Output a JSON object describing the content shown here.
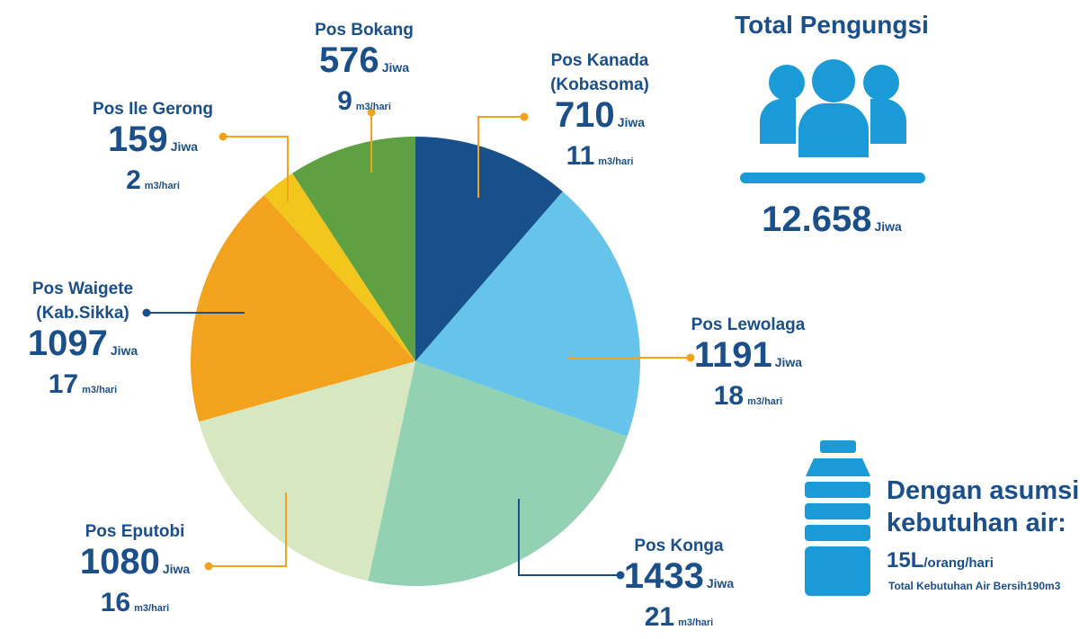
{
  "chart_data": {
    "type": "pie",
    "categories": [
      "Pos Kanada (Kobasoma)",
      "Pos Lewolaga",
      "Pos Konga",
      "Pos Eputobi",
      "Pos Waigete (Kab.Sikka)",
      "Pos Ile Gerong",
      "Pos Bokang"
    ],
    "values": [
      710,
      1191,
      1433,
      1080,
      1097,
      159,
      576
    ],
    "water": [
      11,
      18,
      21,
      16,
      17,
      2,
      9
    ],
    "unit": "Jiwa",
    "water_unit": "m3/hari",
    "colors": [
      "#17508a",
      "#66c4ea",
      "#93d1b3",
      "#d7e7bf",
      "#f2a21d",
      "#f2c61d",
      "#5fa043"
    ],
    "total_title": "Total Pengungsi",
    "total": {
      "value": 12658,
      "label": "12.658"
    },
    "assumption_title": "Dengan asumsi kebutuhan air:",
    "assumption_value": "15L",
    "assumption_unit": "/orang/hari",
    "assumption_total": "Total Kebutuhan Air Bersih190m3"
  }
}
